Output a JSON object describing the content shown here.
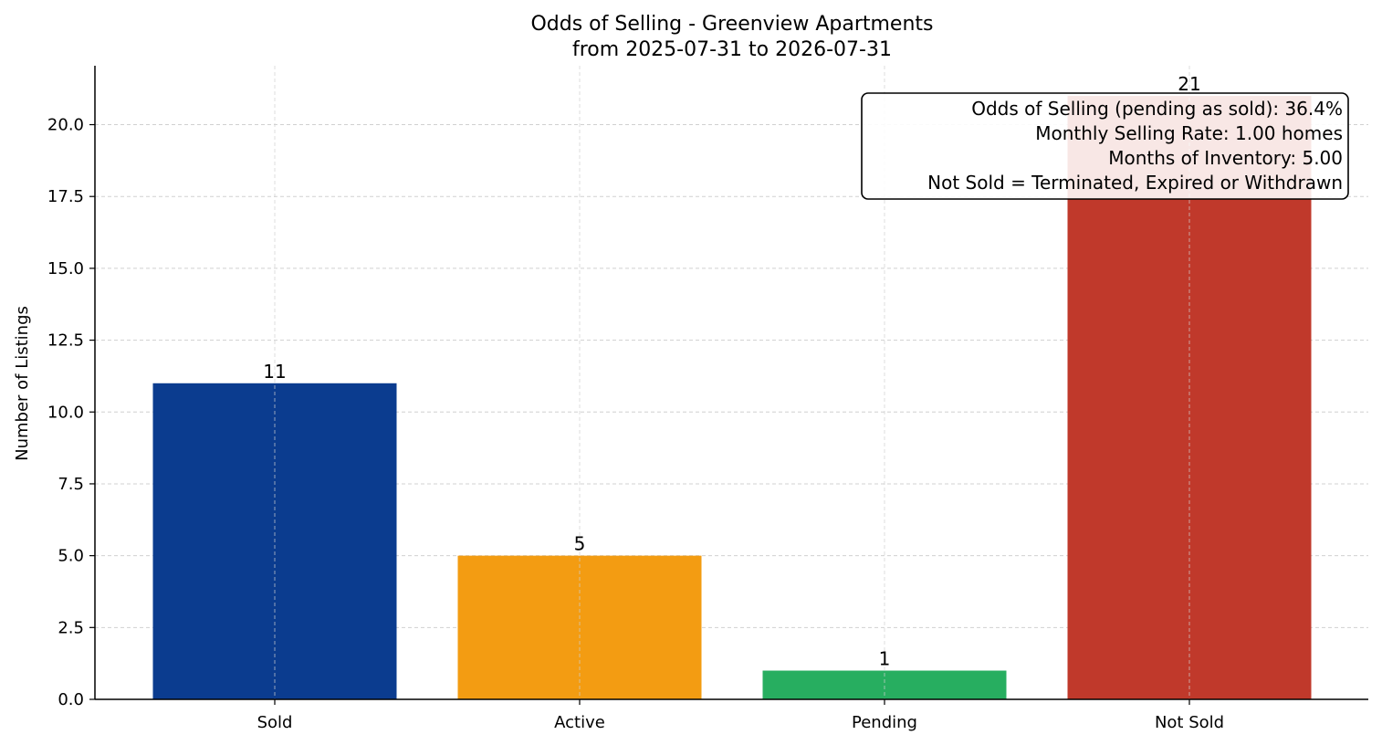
{
  "chart_data": {
    "type": "bar",
    "title": "Odds of Selling - Greenview Apartments",
    "subtitle": "from 2025-07-31 to 2026-07-31",
    "xlabel": "",
    "ylabel": "Number of Listings",
    "categories": [
      "Sold",
      "Active",
      "Pending",
      "Not Sold"
    ],
    "values": [
      11,
      5,
      1,
      21
    ],
    "value_labels": [
      "11",
      "5",
      "1",
      "21"
    ],
    "colors": [
      "#0b3c8f",
      "#f39c12",
      "#27ae60",
      "#c0392b"
    ],
    "ylim": [
      0,
      22.05
    ],
    "yticks": [
      0,
      2.5,
      5,
      7.5,
      10,
      12.5,
      15,
      17.5,
      20
    ],
    "ytick_labels": [
      "0.0",
      "2.5",
      "5.0",
      "7.5",
      "10.0",
      "12.5",
      "15.0",
      "17.5",
      "20.0"
    ],
    "grid": true,
    "info_box": {
      "placement": "top-right",
      "lines": [
        "Odds of Selling (pending as sold): 36.4%",
        "Monthly Selling Rate: 1.00 homes",
        "Months of Inventory: 5.00",
        "Not Sold = Terminated, Expired or Withdrawn"
      ]
    }
  }
}
